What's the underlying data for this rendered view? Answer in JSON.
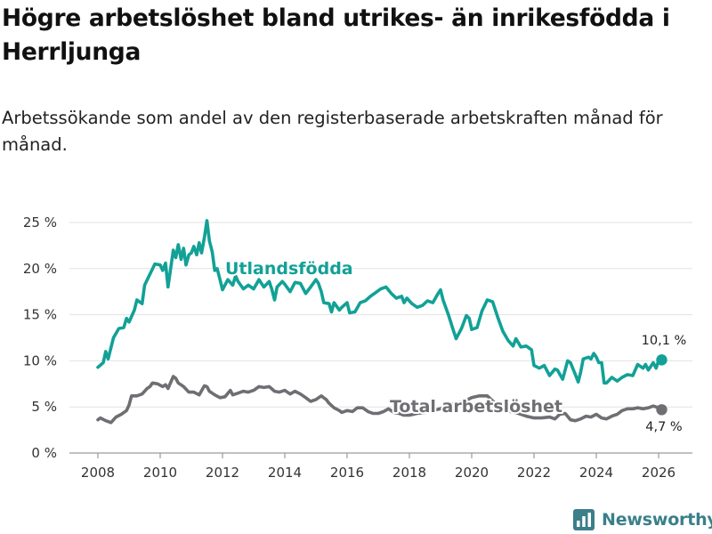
{
  "header": {
    "title": "Högre arbetslöshet bland utrikes- än inrikesfödda i Herrljunga",
    "subtitle": "Arbetssökande som andel av den registerbaserade arbetskraften månad för månad."
  },
  "branding": {
    "logo_text": "Newsworthy",
    "logo_color": "#3a7f8a"
  },
  "chart_data": {
    "type": "line",
    "title": "Högre arbetslöshet bland utrikes- än inrikesfödda i Herrljunga",
    "xlabel": "",
    "ylabel": "",
    "xlim": [
      2007.5,
      2026.8
    ],
    "ylim": [
      0,
      25
    ],
    "grid": true,
    "x_ticks": [
      2008,
      2010,
      2012,
      2014,
      2016,
      2018,
      2020,
      2022,
      2024,
      2026
    ],
    "y_ticks": [
      {
        "value": 0,
        "label": "0 %"
      },
      {
        "value": 5,
        "label": "5 %"
      },
      {
        "value": 10,
        "label": "10 %"
      },
      {
        "value": 15,
        "label": "15 %"
      },
      {
        "value": 20,
        "label": "20 %"
      },
      {
        "value": 25,
        "label": "25 %"
      }
    ],
    "series": [
      {
        "name": "Utlandsfödda",
        "color": "#12a196",
        "end_label": "10,1 %",
        "points": [
          [
            2008.0,
            9.3
          ],
          [
            2008.17,
            9.8
          ],
          [
            2008.25,
            11.0
          ],
          [
            2008.33,
            10.2
          ],
          [
            2008.5,
            12.5
          ],
          [
            2008.67,
            13.5
          ],
          [
            2008.83,
            13.6
          ],
          [
            2008.92,
            14.6
          ],
          [
            2009.0,
            14.2
          ],
          [
            2009.17,
            15.5
          ],
          [
            2009.25,
            16.6
          ],
          [
            2009.42,
            16.2
          ],
          [
            2009.5,
            18.2
          ],
          [
            2009.67,
            19.4
          ],
          [
            2009.83,
            20.5
          ],
          [
            2010.0,
            20.4
          ],
          [
            2010.08,
            19.8
          ],
          [
            2010.17,
            20.6
          ],
          [
            2010.25,
            18.0
          ],
          [
            2010.42,
            22.0
          ],
          [
            2010.5,
            21.2
          ],
          [
            2010.58,
            22.6
          ],
          [
            2010.67,
            21.0
          ],
          [
            2010.75,
            22.2
          ],
          [
            2010.83,
            20.4
          ],
          [
            2010.92,
            21.5
          ],
          [
            2011.0,
            21.7
          ],
          [
            2011.08,
            22.4
          ],
          [
            2011.17,
            21.5
          ],
          [
            2011.25,
            22.8
          ],
          [
            2011.33,
            21.7
          ],
          [
            2011.42,
            23.4
          ],
          [
            2011.5,
            25.2
          ],
          [
            2011.58,
            23.0
          ],
          [
            2011.67,
            21.8
          ],
          [
            2011.75,
            19.8
          ],
          [
            2011.83,
            20.0
          ],
          [
            2011.92,
            18.8
          ],
          [
            2012.0,
            17.7
          ],
          [
            2012.17,
            18.8
          ],
          [
            2012.33,
            18.2
          ],
          [
            2012.42,
            19.2
          ],
          [
            2012.5,
            18.6
          ],
          [
            2012.67,
            17.8
          ],
          [
            2012.83,
            18.2
          ],
          [
            2013.0,
            17.8
          ],
          [
            2013.17,
            18.8
          ],
          [
            2013.33,
            18.0
          ],
          [
            2013.5,
            18.6
          ],
          [
            2013.58,
            17.8
          ],
          [
            2013.67,
            16.6
          ],
          [
            2013.75,
            18.0
          ],
          [
            2013.92,
            18.6
          ],
          [
            2014.0,
            18.3
          ],
          [
            2014.17,
            17.5
          ],
          [
            2014.33,
            18.5
          ],
          [
            2014.5,
            18.4
          ],
          [
            2014.67,
            17.3
          ],
          [
            2014.83,
            18.0
          ],
          [
            2015.0,
            18.8
          ],
          [
            2015.08,
            18.4
          ],
          [
            2015.17,
            17.5
          ],
          [
            2015.25,
            16.3
          ],
          [
            2015.42,
            16.2
          ],
          [
            2015.5,
            15.3
          ],
          [
            2015.58,
            16.3
          ],
          [
            2015.75,
            15.5
          ],
          [
            2015.83,
            15.8
          ],
          [
            2016.0,
            16.3
          ],
          [
            2016.08,
            15.2
          ],
          [
            2016.25,
            15.3
          ],
          [
            2016.42,
            16.3
          ],
          [
            2016.58,
            16.5
          ],
          [
            2016.75,
            17.0
          ],
          [
            2016.92,
            17.4
          ],
          [
            2017.08,
            17.8
          ],
          [
            2017.25,
            18.0
          ],
          [
            2017.42,
            17.3
          ],
          [
            2017.58,
            16.8
          ],
          [
            2017.75,
            17.0
          ],
          [
            2017.83,
            16.3
          ],
          [
            2017.92,
            16.8
          ],
          [
            2018.08,
            16.2
          ],
          [
            2018.25,
            15.8
          ],
          [
            2018.42,
            16.0
          ],
          [
            2018.58,
            16.5
          ],
          [
            2018.75,
            16.3
          ],
          [
            2018.92,
            17.3
          ],
          [
            2019.0,
            17.7
          ],
          [
            2019.08,
            16.6
          ],
          [
            2019.25,
            15.0
          ],
          [
            2019.42,
            13.2
          ],
          [
            2019.5,
            12.4
          ],
          [
            2019.67,
            13.5
          ],
          [
            2019.83,
            14.9
          ],
          [
            2019.92,
            14.6
          ],
          [
            2020.0,
            13.4
          ],
          [
            2020.17,
            13.6
          ],
          [
            2020.33,
            15.4
          ],
          [
            2020.5,
            16.6
          ],
          [
            2020.67,
            16.4
          ],
          [
            2020.83,
            14.8
          ],
          [
            2021.0,
            13.2
          ],
          [
            2021.17,
            12.2
          ],
          [
            2021.33,
            11.6
          ],
          [
            2021.42,
            12.4
          ],
          [
            2021.58,
            11.5
          ],
          [
            2021.75,
            11.6
          ],
          [
            2021.92,
            11.2
          ],
          [
            2022.0,
            9.5
          ],
          [
            2022.17,
            9.2
          ],
          [
            2022.33,
            9.5
          ],
          [
            2022.5,
            8.4
          ],
          [
            2022.67,
            9.1
          ],
          [
            2022.75,
            9.0
          ],
          [
            2022.92,
            8.0
          ],
          [
            2023.0,
            9.0
          ],
          [
            2023.08,
            10.0
          ],
          [
            2023.17,
            9.8
          ],
          [
            2023.33,
            8.5
          ],
          [
            2023.42,
            7.7
          ],
          [
            2023.5,
            8.8
          ],
          [
            2023.58,
            10.2
          ],
          [
            2023.75,
            10.4
          ],
          [
            2023.83,
            10.2
          ],
          [
            2023.92,
            10.8
          ],
          [
            2024.0,
            10.4
          ],
          [
            2024.08,
            9.8
          ],
          [
            2024.17,
            9.8
          ],
          [
            2024.25,
            7.6
          ],
          [
            2024.33,
            7.6
          ],
          [
            2024.5,
            8.2
          ],
          [
            2024.67,
            7.8
          ],
          [
            2024.83,
            8.2
          ],
          [
            2025.0,
            8.5
          ],
          [
            2025.17,
            8.4
          ],
          [
            2025.33,
            9.6
          ],
          [
            2025.5,
            9.2
          ],
          [
            2025.58,
            9.6
          ],
          [
            2025.67,
            9.0
          ],
          [
            2025.83,
            9.8
          ],
          [
            2025.92,
            9.2
          ],
          [
            2026.0,
            10.0
          ],
          [
            2026.1,
            10.1
          ]
        ]
      },
      {
        "name": "Total arbetslöshet",
        "color": "#6e6e73",
        "end_label": "4,7 %",
        "points": [
          [
            2008.0,
            3.6
          ],
          [
            2008.08,
            3.8
          ],
          [
            2008.25,
            3.5
          ],
          [
            2008.42,
            3.3
          ],
          [
            2008.58,
            3.9
          ],
          [
            2008.75,
            4.2
          ],
          [
            2008.92,
            4.6
          ],
          [
            2009.0,
            5.2
          ],
          [
            2009.08,
            6.2
          ],
          [
            2009.25,
            6.2
          ],
          [
            2009.42,
            6.4
          ],
          [
            2009.58,
            7.0
          ],
          [
            2009.67,
            7.2
          ],
          [
            2009.75,
            7.6
          ],
          [
            2009.92,
            7.5
          ],
          [
            2010.08,
            7.2
          ],
          [
            2010.17,
            7.4
          ],
          [
            2010.25,
            7.0
          ],
          [
            2010.42,
            8.3
          ],
          [
            2010.5,
            8.1
          ],
          [
            2010.58,
            7.6
          ],
          [
            2010.75,
            7.2
          ],
          [
            2010.92,
            6.6
          ],
          [
            2011.08,
            6.6
          ],
          [
            2011.25,
            6.3
          ],
          [
            2011.42,
            7.3
          ],
          [
            2011.5,
            7.2
          ],
          [
            2011.58,
            6.7
          ],
          [
            2011.75,
            6.3
          ],
          [
            2011.92,
            6.0
          ],
          [
            2012.08,
            6.1
          ],
          [
            2012.25,
            6.8
          ],
          [
            2012.33,
            6.3
          ],
          [
            2012.5,
            6.5
          ],
          [
            2012.67,
            6.7
          ],
          [
            2012.83,
            6.6
          ],
          [
            2013.0,
            6.8
          ],
          [
            2013.17,
            7.2
          ],
          [
            2013.33,
            7.1
          ],
          [
            2013.5,
            7.2
          ],
          [
            2013.67,
            6.7
          ],
          [
            2013.83,
            6.6
          ],
          [
            2014.0,
            6.8
          ],
          [
            2014.17,
            6.4
          ],
          [
            2014.33,
            6.7
          ],
          [
            2014.5,
            6.4
          ],
          [
            2014.67,
            6.0
          ],
          [
            2014.83,
            5.6
          ],
          [
            2015.0,
            5.8
          ],
          [
            2015.17,
            6.2
          ],
          [
            2015.33,
            5.8
          ],
          [
            2015.42,
            5.4
          ],
          [
            2015.58,
            4.9
          ],
          [
            2015.75,
            4.6
          ],
          [
            2015.83,
            4.4
          ],
          [
            2016.0,
            4.6
          ],
          [
            2016.17,
            4.5
          ],
          [
            2016.33,
            4.9
          ],
          [
            2016.5,
            4.9
          ],
          [
            2016.67,
            4.5
          ],
          [
            2016.83,
            4.3
          ],
          [
            2017.0,
            4.3
          ],
          [
            2017.17,
            4.5
          ],
          [
            2017.33,
            4.8
          ],
          [
            2017.5,
            4.4
          ],
          [
            2017.67,
            4.3
          ],
          [
            2017.83,
            4.1
          ],
          [
            2018.0,
            4.1
          ],
          [
            2018.25,
            4.3
          ],
          [
            2018.5,
            4.4
          ],
          [
            2018.75,
            4.6
          ],
          [
            2019.0,
            4.8
          ],
          [
            2019.25,
            5.2
          ],
          [
            2019.5,
            5.4
          ],
          [
            2019.75,
            5.6
          ],
          [
            2020.0,
            6.0
          ],
          [
            2020.25,
            6.2
          ],
          [
            2020.5,
            6.2
          ],
          [
            2020.75,
            5.4
          ],
          [
            2021.0,
            4.9
          ],
          [
            2021.25,
            4.5
          ],
          [
            2021.5,
            4.3
          ],
          [
            2021.75,
            4.0
          ],
          [
            2022.0,
            3.8
          ],
          [
            2022.25,
            3.8
          ],
          [
            2022.5,
            3.9
          ],
          [
            2022.67,
            3.7
          ],
          [
            2022.83,
            4.2
          ],
          [
            2023.0,
            4.3
          ],
          [
            2023.17,
            3.6
          ],
          [
            2023.33,
            3.5
          ],
          [
            2023.5,
            3.7
          ],
          [
            2023.67,
            4.0
          ],
          [
            2023.83,
            3.9
          ],
          [
            2024.0,
            4.2
          ],
          [
            2024.17,
            3.8
          ],
          [
            2024.33,
            3.7
          ],
          [
            2024.5,
            4.0
          ],
          [
            2024.67,
            4.2
          ],
          [
            2024.83,
            4.6
          ],
          [
            2025.0,
            4.8
          ],
          [
            2025.17,
            4.8
          ],
          [
            2025.33,
            4.9
          ],
          [
            2025.5,
            4.8
          ],
          [
            2025.67,
            4.9
          ],
          [
            2025.83,
            5.1
          ],
          [
            2026.0,
            4.9
          ],
          [
            2026.1,
            4.7
          ]
        ]
      }
    ]
  }
}
